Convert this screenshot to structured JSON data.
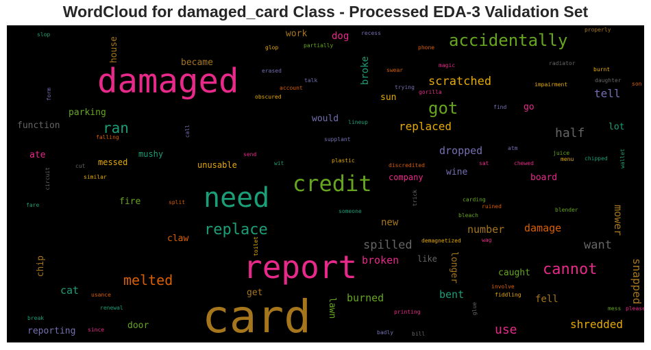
{
  "chart_data": {
    "type": "wordcloud",
    "title": "WordCloud for damaged_card Class - Processed EDA-3 Validation Set",
    "background": "#000000",
    "palette": [
      "#1b9e77",
      "#d95f02",
      "#7570b3",
      "#e7298a",
      "#66a61e",
      "#e6ab02",
      "#a6761d",
      "#666666"
    ],
    "words": [
      {
        "text": "card",
        "color": "#a6761d",
        "orient": "h"
      },
      {
        "text": "report",
        "color": "#e7298a",
        "orient": "h"
      },
      {
        "text": "damaged",
        "color": "#e7298a",
        "orient": "h"
      },
      {
        "text": "need",
        "color": "#1b9e77",
        "orient": "h"
      },
      {
        "text": "credit",
        "color": "#66a61e",
        "orient": "h"
      },
      {
        "text": "accidentally",
        "color": "#66a61e",
        "orient": "h"
      },
      {
        "text": "replace",
        "color": "#1b9e77",
        "orient": "h"
      },
      {
        "text": "cannot",
        "color": "#e7298a",
        "orient": "h"
      },
      {
        "text": "got",
        "color": "#66a61e",
        "orient": "h"
      },
      {
        "text": "melted",
        "color": "#d95f02",
        "orient": "h"
      },
      {
        "text": "ran",
        "color": "#1b9e77",
        "orient": "h"
      },
      {
        "text": "scratched",
        "color": "#e6ab02",
        "orient": "h"
      },
      {
        "text": "replaced",
        "color": "#e6ab02",
        "orient": "h"
      },
      {
        "text": "spilled",
        "color": "#666666",
        "orient": "h"
      },
      {
        "text": "half",
        "color": "#666666",
        "orient": "h"
      },
      {
        "text": "want",
        "color": "#666666",
        "orient": "h"
      },
      {
        "text": "snapped",
        "color": "#a6761d",
        "orient": "v"
      },
      {
        "text": "shredded",
        "color": "#e6ab02",
        "orient": "h"
      },
      {
        "text": "use",
        "color": "#e7298a",
        "orient": "h"
      },
      {
        "text": "damage",
        "color": "#d95f02",
        "orient": "h"
      },
      {
        "text": "number",
        "color": "#a6761d",
        "orient": "h"
      },
      {
        "text": "burned",
        "color": "#66a61e",
        "orient": "h"
      },
      {
        "text": "dropped",
        "color": "#7570b3",
        "orient": "h"
      },
      {
        "text": "tell",
        "color": "#7570b3",
        "orient": "h"
      },
      {
        "text": "mower",
        "color": "#a6761d",
        "orient": "v"
      },
      {
        "text": "bent",
        "color": "#1b9e77",
        "orient": "h"
      },
      {
        "text": "broken",
        "color": "#e7298a",
        "orient": "h"
      },
      {
        "text": "cat",
        "color": "#1b9e77",
        "orient": "h"
      },
      {
        "text": "fell",
        "color": "#a6761d",
        "orient": "h"
      },
      {
        "text": "caught",
        "color": "#66a61e",
        "orient": "h"
      },
      {
        "text": "new",
        "color": "#a6761d",
        "orient": "h"
      },
      {
        "text": "lawn",
        "color": "#66a61e",
        "orient": "v"
      },
      {
        "text": "longer",
        "color": "#a6761d",
        "orient": "v"
      },
      {
        "text": "broke",
        "color": "#1b9e77",
        "orient": "vu"
      },
      {
        "text": "house",
        "color": "#a6761d",
        "orient": "vu"
      },
      {
        "text": "chip",
        "color": "#a6761d",
        "orient": "vu"
      },
      {
        "text": "reporting",
        "color": "#7570b3",
        "orient": "h"
      },
      {
        "text": "door",
        "color": "#66a61e",
        "orient": "h"
      },
      {
        "text": "get",
        "color": "#a6761d",
        "orient": "h"
      },
      {
        "text": "claw",
        "color": "#d95f02",
        "orient": "h"
      },
      {
        "text": "fire",
        "color": "#66a61e",
        "orient": "h"
      },
      {
        "text": "messed",
        "color": "#e6ab02",
        "orient": "h"
      },
      {
        "text": "unusable",
        "color": "#e6ab02",
        "orient": "h"
      },
      {
        "text": "mushy",
        "color": "#1b9e77",
        "orient": "h"
      },
      {
        "text": "parking",
        "color": "#66a61e",
        "orient": "h"
      },
      {
        "text": "function",
        "color": "#666666",
        "orient": "h"
      },
      {
        "text": "ate",
        "color": "#e7298a",
        "orient": "h"
      },
      {
        "text": "became",
        "color": "#a6761d",
        "orient": "h"
      },
      {
        "text": "work",
        "color": "#a6761d",
        "orient": "h"
      },
      {
        "text": "dog",
        "color": "#e7298a",
        "orient": "h"
      },
      {
        "text": "sun",
        "color": "#e6ab02",
        "orient": "h"
      },
      {
        "text": "would",
        "color": "#7570b3",
        "orient": "h"
      },
      {
        "text": "wine",
        "color": "#7570b3",
        "orient": "h"
      },
      {
        "text": "company",
        "color": "#e7298a",
        "orient": "h"
      },
      {
        "text": "board",
        "color": "#e7298a",
        "orient": "h"
      },
      {
        "text": "go",
        "color": "#e7298a",
        "orient": "h"
      },
      {
        "text": "lot",
        "color": "#1b9e77",
        "orient": "h"
      },
      {
        "text": "like",
        "color": "#666666",
        "orient": "h"
      },
      {
        "text": "slop",
        "color": "#1b9e77",
        "orient": "h"
      },
      {
        "text": "recess",
        "color": "#7570b3",
        "orient": "h"
      },
      {
        "text": "properly",
        "color": "#a6761d",
        "orient": "h"
      },
      {
        "text": "glop",
        "color": "#e6ab02",
        "orient": "h"
      },
      {
        "text": "partially",
        "color": "#66a61e",
        "orient": "h"
      },
      {
        "text": "phone",
        "color": "#d95f02",
        "orient": "h"
      },
      {
        "text": "radiator",
        "color": "#666666",
        "orient": "h"
      },
      {
        "text": "magic",
        "color": "#e7298a",
        "orient": "h"
      },
      {
        "text": "swear",
        "color": "#d95f02",
        "orient": "h"
      },
      {
        "text": "burnt",
        "color": "#e6ab02",
        "orient": "h"
      },
      {
        "text": "erased",
        "color": "#7570b3",
        "orient": "h"
      },
      {
        "text": "talk",
        "color": "#7570b3",
        "orient": "h"
      },
      {
        "text": "daughter",
        "color": "#666666",
        "orient": "h"
      },
      {
        "text": "trying",
        "color": "#7570b3",
        "orient": "h"
      },
      {
        "text": "impairment",
        "color": "#e6ab02",
        "orient": "h"
      },
      {
        "text": "son",
        "color": "#d95f02",
        "orient": "h"
      },
      {
        "text": "account",
        "color": "#d95f02",
        "orient": "h"
      },
      {
        "text": "gorilla",
        "color": "#e7298a",
        "orient": "h"
      },
      {
        "text": "obscured",
        "color": "#e6ab02",
        "orient": "h"
      },
      {
        "text": "form",
        "color": "#7570b3",
        "orient": "vu"
      },
      {
        "text": "find",
        "color": "#7570b3",
        "orient": "h"
      },
      {
        "text": "lineup",
        "color": "#1b9e77",
        "orient": "h"
      },
      {
        "text": "call",
        "color": "#7570b3",
        "orient": "vu"
      },
      {
        "text": "falling",
        "color": "#d95f02",
        "orient": "h"
      },
      {
        "text": "supplant",
        "color": "#7570b3",
        "orient": "h"
      },
      {
        "text": "atm",
        "color": "#7570b3",
        "orient": "h"
      },
      {
        "text": "juice",
        "color": "#66a61e",
        "orient": "h"
      },
      {
        "text": "wallet",
        "color": "#1b9e77",
        "orient": "vu"
      },
      {
        "text": "send",
        "color": "#e7298a",
        "orient": "h"
      },
      {
        "text": "menu",
        "color": "#e6ab02",
        "orient": "h"
      },
      {
        "text": "chipped",
        "color": "#1b9e77",
        "orient": "h"
      },
      {
        "text": "cut",
        "color": "#666666",
        "orient": "h"
      },
      {
        "text": "wit",
        "color": "#1b9e77",
        "orient": "h"
      },
      {
        "text": "plastic",
        "color": "#e6ab02",
        "orient": "h"
      },
      {
        "text": "discredited",
        "color": "#d95f02",
        "orient": "h"
      },
      {
        "text": "sat",
        "color": "#e7298a",
        "orient": "h"
      },
      {
        "text": "chewed",
        "color": "#e7298a",
        "orient": "h"
      },
      {
        "text": "circuit",
        "color": "#666666",
        "orient": "vu"
      },
      {
        "text": "similar",
        "color": "#e6ab02",
        "orient": "h"
      },
      {
        "text": "split",
        "color": "#d95f02",
        "orient": "h"
      },
      {
        "text": "trick",
        "color": "#666666",
        "orient": "vu"
      },
      {
        "text": "carding",
        "color": "#66a61e",
        "orient": "h"
      },
      {
        "text": "ruined",
        "color": "#d95f02",
        "orient": "h"
      },
      {
        "text": "fare",
        "color": "#1b9e77",
        "orient": "h"
      },
      {
        "text": "someone",
        "color": "#1b9e77",
        "orient": "h"
      },
      {
        "text": "bleach",
        "color": "#66a61e",
        "orient": "h"
      },
      {
        "text": "blender",
        "color": "#66a61e",
        "orient": "h"
      },
      {
        "text": "demagnetized",
        "color": "#e6ab02",
        "orient": "h"
      },
      {
        "text": "wag",
        "color": "#e7298a",
        "orient": "h"
      },
      {
        "text": "toilet",
        "color": "#e6ab02",
        "orient": "vu"
      },
      {
        "text": "involve",
        "color": "#d95f02",
        "orient": "h"
      },
      {
        "text": "usance",
        "color": "#d95f02",
        "orient": "h"
      },
      {
        "text": "fiddling",
        "color": "#e6ab02",
        "orient": "h"
      },
      {
        "text": "renewal",
        "color": "#1b9e77",
        "orient": "h"
      },
      {
        "text": "glue",
        "color": "#666666",
        "orient": "vu"
      },
      {
        "text": "mess",
        "color": "#66a61e",
        "orient": "h"
      },
      {
        "text": "please",
        "color": "#e7298a",
        "orient": "h"
      },
      {
        "text": "printing",
        "color": "#e7298a",
        "orient": "h"
      },
      {
        "text": "break",
        "color": "#1b9e77",
        "orient": "h"
      },
      {
        "text": "since",
        "color": "#e7298a",
        "orient": "h"
      },
      {
        "text": "badly",
        "color": "#7570b3",
        "orient": "h"
      },
      {
        "text": "bill",
        "color": "#666666",
        "orient": "h"
      }
    ]
  }
}
